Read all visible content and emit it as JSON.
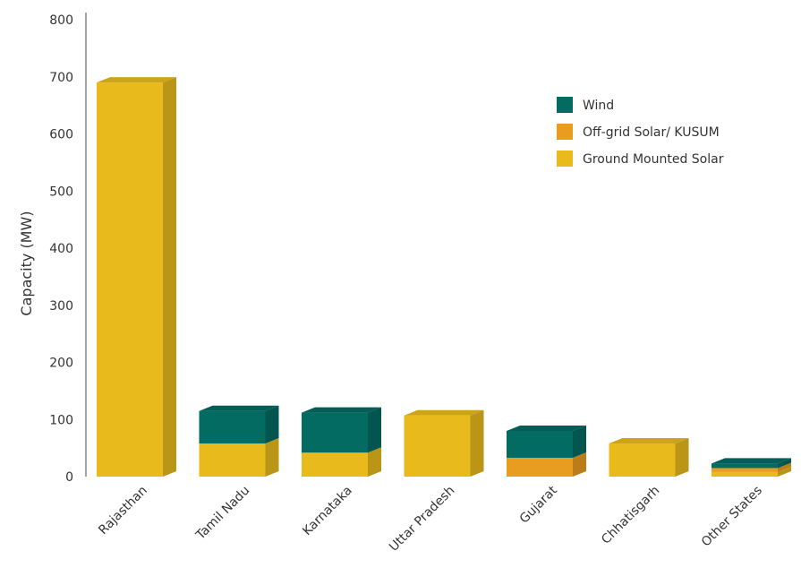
{
  "chart_data": {
    "type": "bar",
    "stacked": true,
    "ylabel": "Capacity (MW)",
    "xlabel": "",
    "ylim": [
      0,
      800
    ],
    "yticks": [
      0,
      100,
      200,
      300,
      400,
      500,
      600,
      700,
      800
    ],
    "categories": [
      "Rajasthan",
      "Tamil Nadu",
      "Karnataka",
      "Uttar Pradesh",
      "Gujarat",
      "Chhatisgarh",
      "Other States"
    ],
    "series": [
      {
        "name": "Ground Mounted Solar",
        "color": "#E9BA1C",
        "values": [
          690,
          58,
          42,
          107,
          0,
          58,
          8
        ]
      },
      {
        "name": "Off-grid Solar/ KUSUM",
        "color": "#E89C20",
        "values": [
          0,
          0,
          0,
          0,
          33,
          0,
          7
        ]
      },
      {
        "name": "Wind",
        "color": "#046B63",
        "values": [
          0,
          57,
          70,
          0,
          47,
          0,
          8
        ]
      }
    ],
    "legend_order": [
      "Wind",
      "Off-grid Solar/ KUSUM",
      "Ground Mounted Solar"
    ],
    "legend_position": "top-right",
    "grid": false
  }
}
